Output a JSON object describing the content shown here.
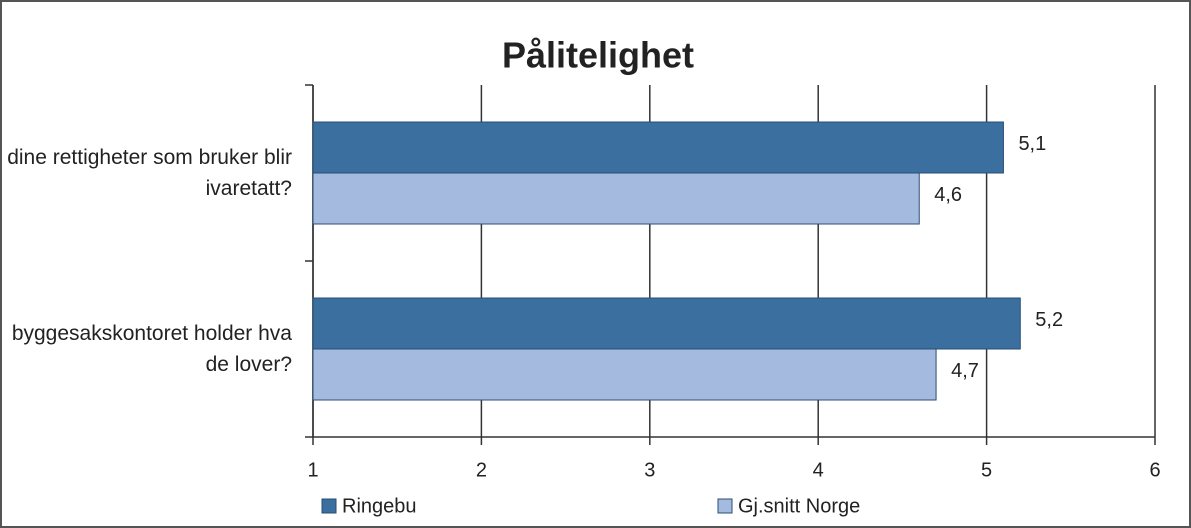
{
  "chart_data": {
    "type": "hbar",
    "title": "Pålitelighet",
    "categories": [
      "dine rettigheter som bruker blir ivaretatt?",
      "byggesakskontoret holder hva de lover?"
    ],
    "series": [
      {
        "name": "Ringebu",
        "color": "#3b6f9f",
        "values": [
          5.1,
          5.2
        ],
        "value_labels": [
          "5,1",
          "5,2"
        ]
      },
      {
        "name": "Gj.snitt Norge",
        "color": "#a4badf",
        "values": [
          4.6,
          4.7
        ],
        "value_labels": [
          "4,6",
          "4,7"
        ]
      }
    ],
    "xlim": [
      1,
      6
    ],
    "xticks": [
      1,
      2,
      3,
      4,
      5,
      6
    ],
    "grid": true,
    "legend": "bottom"
  }
}
